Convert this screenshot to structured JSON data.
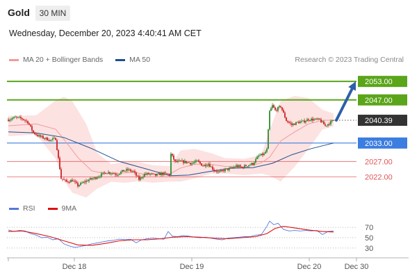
{
  "header": {
    "instrument": "Gold",
    "interval": "30 MIN",
    "datetime": "Wednesday, December 20, 2023 4:40:41 AM CET"
  },
  "legend": {
    "bollinger_label": "MA 20 + Bollinger Bands",
    "ma50_label": "MA 50",
    "rsi_label": "RSI",
    "ma9_label": "9MA"
  },
  "credit": "Research © 2023 Trading Central",
  "colors": {
    "up": "#2e8b2e",
    "down": "#cc2222",
    "target": "#5aa51a",
    "pivot": "#3b7de0",
    "support": "#e05555",
    "bollinger_fill": "#fde2e2",
    "ma20": "#f19a9a",
    "ma50": "#1f4e8c",
    "rsi": "#5577dd",
    "ma9": "#dd1111",
    "last_price": "#333333",
    "arrow": "#2e5fa8"
  },
  "chart_data": [
    {
      "type": "candlestick",
      "title": "Gold",
      "interval": "30 MIN",
      "x_ticks": [
        "Dec 18",
        "Dec 19",
        "Dec 20",
        "Dec 30"
      ],
      "y_range": [
        2014,
        2058
      ],
      "levels": [
        {
          "label": "2053.00",
          "value": 2053.0,
          "kind": "target"
        },
        {
          "label": "2047.00",
          "value": 2047.0,
          "kind": "target"
        },
        {
          "label": "2040.39",
          "value": 2040.39,
          "kind": "last"
        },
        {
          "label": "2033.00",
          "value": 2033.0,
          "kind": "pivot"
        },
        {
          "label": "2027.00",
          "value": 2027.0,
          "kind": "support"
        },
        {
          "label": "2022.00",
          "value": 2022.0,
          "kind": "support"
        }
      ],
      "arrow": {
        "from_value": 2040.4,
        "to_value": 2053.0
      },
      "price_anchors": [
        [
          0,
          2040.6
        ],
        [
          5,
          2041.3
        ],
        [
          10,
          2040.9
        ],
        [
          14,
          2039.8
        ],
        [
          18,
          2036.4
        ],
        [
          22,
          2035.2
        ],
        [
          26,
          2034.6
        ],
        [
          30,
          2033.9
        ],
        [
          34,
          2034.4
        ],
        [
          38,
          2021.5
        ],
        [
          42,
          2020.4
        ],
        [
          46,
          2020.9
        ],
        [
          50,
          2019.2
        ],
        [
          54,
          2020.2
        ],
        [
          58,
          2021.1
        ],
        [
          62,
          2021.6
        ],
        [
          66,
          2022.5
        ],
        [
          70,
          2023.5
        ],
        [
          74,
          2023.4
        ],
        [
          78,
          2022.8
        ],
        [
          82,
          2023.8
        ],
        [
          86,
          2024.3
        ],
        [
          90,
          2023.7
        ],
        [
          94,
          2021.2
        ],
        [
          98,
          2022.9
        ],
        [
          102,
          2023.0
        ],
        [
          106,
          2022.5
        ],
        [
          110,
          2023.1
        ],
        [
          114,
          2022.9
        ],
        [
          116,
          2022.8
        ],
        [
          117,
          2029.4
        ],
        [
          120,
          2026.9
        ],
        [
          124,
          2027.0
        ],
        [
          128,
          2026.8
        ],
        [
          132,
          2026.4
        ],
        [
          136,
          2027.1
        ],
        [
          140,
          2025.6
        ],
        [
          144,
          2026.2
        ],
        [
          148,
          2024.2
        ],
        [
          152,
          2023.5
        ],
        [
          156,
          2024.4
        ],
        [
          160,
          2024.7
        ],
        [
          164,
          2025.6
        ],
        [
          168,
          2025.1
        ],
        [
          172,
          2025.8
        ],
        [
          176,
          2026.3
        ],
        [
          180,
          2028.8
        ],
        [
          184,
          2029.4
        ],
        [
          186,
          2030.8
        ],
        [
          188,
          2043.2
        ],
        [
          190,
          2045.1
        ],
        [
          192,
          2043.6
        ],
        [
          196,
          2044.9
        ],
        [
          200,
          2040.3
        ],
        [
          204,
          2038.9
        ],
        [
          208,
          2039.7
        ],
        [
          212,
          2039.9
        ],
        [
          216,
          2040.7
        ],
        [
          220,
          2040.6
        ],
        [
          224,
          2040.5
        ],
        [
          228,
          2038.6
        ],
        [
          232,
          2039.8
        ],
        [
          234,
          2040.4
        ]
      ],
      "ma20": [
        [
          0,
          2038.6
        ],
        [
          20,
          2039.2
        ],
        [
          34,
          2037.5
        ],
        [
          40,
          2034.2
        ],
        [
          50,
          2028.3
        ],
        [
          60,
          2024.0
        ],
        [
          70,
          2023.0
        ],
        [
          80,
          2023.2
        ],
        [
          90,
          2023.5
        ],
        [
          100,
          2022.7
        ],
        [
          110,
          2022.7
        ],
        [
          116,
          2022.9
        ],
        [
          124,
          2024.9
        ],
        [
          134,
          2026.1
        ],
        [
          144,
          2026.2
        ],
        [
          156,
          2025.4
        ],
        [
          170,
          2025.0
        ],
        [
          182,
          2026.6
        ],
        [
          188,
          2028.4
        ],
        [
          196,
          2033.7
        ],
        [
          206,
          2036.6
        ],
        [
          216,
          2039.2
        ],
        [
          226,
          2040.4
        ],
        [
          234,
          2040.4
        ]
      ],
      "bollinger_upper": [
        [
          0,
          2041.8
        ],
        [
          20,
          2042.0
        ],
        [
          34,
          2046.8
        ],
        [
          40,
          2048.0
        ],
        [
          46,
          2046.6
        ],
        [
          56,
          2039.2
        ],
        [
          64,
          2029.8
        ],
        [
          74,
          2026.1
        ],
        [
          84,
          2026.9
        ],
        [
          94,
          2026.8
        ],
        [
          104,
          2025.8
        ],
        [
          116,
          2025.5
        ],
        [
          124,
          2030.6
        ],
        [
          134,
          2031.1
        ],
        [
          146,
          2029.7
        ],
        [
          156,
          2028.1
        ],
        [
          170,
          2027.9
        ],
        [
          182,
          2029.1
        ],
        [
          188,
          2037.2
        ],
        [
          196,
          2046.7
        ],
        [
          206,
          2048.3
        ],
        [
          216,
          2047.6
        ],
        [
          226,
          2043.8
        ],
        [
          234,
          2042.6
        ]
      ],
      "bollinger_lower": [
        [
          0,
          2035.2
        ],
        [
          20,
          2035.8
        ],
        [
          34,
          2027.9
        ],
        [
          40,
          2020.8
        ],
        [
          46,
          2016.9
        ],
        [
          56,
          2015.3
        ],
        [
          64,
          2018.2
        ],
        [
          74,
          2020.4
        ],
        [
          84,
          2020.1
        ],
        [
          94,
          2020.6
        ],
        [
          104,
          2020.1
        ],
        [
          116,
          2020.5
        ],
        [
          124,
          2020.5
        ],
        [
          134,
          2021.5
        ],
        [
          146,
          2023.1
        ],
        [
          156,
          2023.1
        ],
        [
          170,
          2022.6
        ],
        [
          182,
          2023.1
        ],
        [
          188,
          2022.4
        ],
        [
          196,
          2020.5
        ],
        [
          206,
          2025.3
        ],
        [
          216,
          2031.1
        ],
        [
          226,
          2037.4
        ],
        [
          234,
          2038.4
        ]
      ],
      "ma50": [
        [
          0,
          2036.6
        ],
        [
          20,
          2036.3
        ],
        [
          40,
          2034.8
        ],
        [
          60,
          2031.2
        ],
        [
          80,
          2027.0
        ],
        [
          100,
          2024.5
        ],
        [
          116,
          2022.4
        ],
        [
          130,
          2022.6
        ],
        [
          144,
          2023.7
        ],
        [
          160,
          2024.8
        ],
        [
          176,
          2025.0
        ],
        [
          190,
          2026.4
        ],
        [
          204,
          2029.2
        ],
        [
          218,
          2031.2
        ],
        [
          234,
          2033.0
        ]
      ]
    },
    {
      "type": "line",
      "title": "RSI",
      "y_ticks": [
        70,
        50,
        30
      ],
      "y_range": [
        15,
        85
      ],
      "series": [
        {
          "name": "RSI",
          "points": [
            [
              0,
              65
            ],
            [
              4,
              62
            ],
            [
              8,
              64
            ],
            [
              12,
              63
            ],
            [
              16,
              58
            ],
            [
              20,
              55
            ],
            [
              24,
              50
            ],
            [
              28,
              51
            ],
            [
              32,
              46
            ],
            [
              36,
              48
            ],
            [
              40,
              38
            ],
            [
              44,
              34
            ],
            [
              48,
              31
            ],
            [
              52,
              33
            ],
            [
              56,
              35
            ],
            [
              60,
              38
            ],
            [
              64,
              40
            ],
            [
              68,
              42
            ],
            [
              72,
              44
            ],
            [
              76,
              45
            ],
            [
              80,
              47
            ],
            [
              84,
              46
            ],
            [
              88,
              47
            ],
            [
              92,
              40
            ],
            [
              96,
              46
            ],
            [
              100,
              48
            ],
            [
              104,
              49
            ],
            [
              108,
              48
            ],
            [
              112,
              47
            ],
            [
              115,
              62
            ],
            [
              118,
              53
            ],
            [
              122,
              52
            ],
            [
              126,
              54
            ],
            [
              130,
              53
            ],
            [
              134,
              51
            ],
            [
              138,
              50
            ],
            [
              142,
              51
            ],
            [
              146,
              49
            ],
            [
              150,
              47
            ],
            [
              154,
              46
            ],
            [
              158,
              49
            ],
            [
              162,
              50
            ],
            [
              166,
              51
            ],
            [
              170,
              52
            ],
            [
              174,
              52
            ],
            [
              178,
              55
            ],
            [
              182,
              56
            ],
            [
              186,
              72
            ],
            [
              188,
              82
            ],
            [
              191,
              75
            ],
            [
              194,
              78
            ],
            [
              198,
              66
            ],
            [
              202,
              63
            ],
            [
              206,
              64
            ],
            [
              210,
              63
            ],
            [
              214,
              64
            ],
            [
              218,
              63
            ],
            [
              222,
              64
            ],
            [
              226,
              56
            ],
            [
              230,
              62
            ],
            [
              234,
              63
            ]
          ]
        },
        {
          "name": "9MA",
          "points": [
            [
              0,
              62
            ],
            [
              10,
              63
            ],
            [
              20,
              58
            ],
            [
              30,
              52
            ],
            [
              40,
              44
            ],
            [
              50,
              36
            ],
            [
              60,
              35
            ],
            [
              70,
              39
            ],
            [
              80,
              44
            ],
            [
              90,
              46
            ],
            [
              100,
              46
            ],
            [
              110,
              48
            ],
            [
              118,
              51
            ],
            [
              128,
              52
            ],
            [
              138,
              51
            ],
            [
              148,
              49
            ],
            [
              158,
              48
            ],
            [
              168,
              50
            ],
            [
              178,
              52
            ],
            [
              186,
              58
            ],
            [
              192,
              68
            ],
            [
              198,
              72
            ],
            [
              206,
              69
            ],
            [
              216,
              65
            ],
            [
              226,
              62
            ],
            [
              234,
              61
            ]
          ]
        }
      ]
    }
  ]
}
